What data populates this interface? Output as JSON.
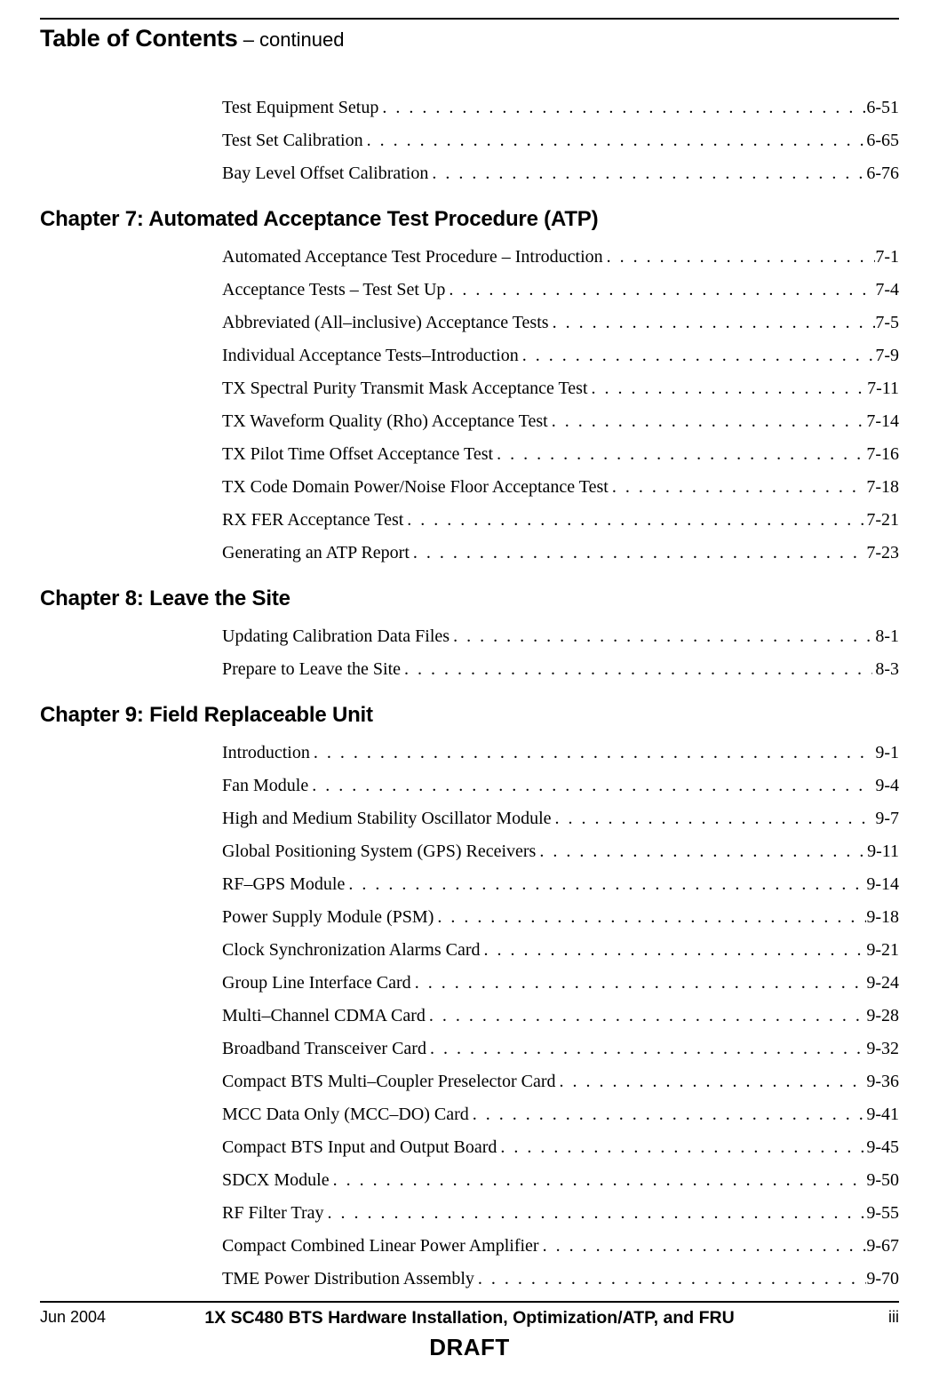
{
  "header": {
    "title": "Table of Contents",
    "suffix": " – continued"
  },
  "pre_entries": [
    {
      "label": "Test Equipment Setup",
      "page": "6-51"
    },
    {
      "label": "Test Set Calibration",
      "page": "6-65"
    },
    {
      "label": "Bay Level Offset Calibration",
      "page": "6-76"
    }
  ],
  "chapters": [
    {
      "title": "Chapter 7: Automated Acceptance Test Procedure (ATP)",
      "entries": [
        {
          "label": "Automated Acceptance Test Procedure – Introduction",
          "page": "7-1"
        },
        {
          "label": "Acceptance Tests – Test Set Up",
          "page": "7-4"
        },
        {
          "label": "Abbreviated (All–inclusive) Acceptance Tests",
          "page": "7-5"
        },
        {
          "label": "Individual Acceptance Tests–Introduction",
          "page": "7-9"
        },
        {
          "label": "TX Spectral Purity Transmit Mask Acceptance Test",
          "page": "7-11"
        },
        {
          "label": "TX Waveform Quality (Rho) Acceptance Test",
          "page": "7-14"
        },
        {
          "label": "TX Pilot Time Offset Acceptance Test",
          "page": "7-16"
        },
        {
          "label": "TX Code Domain Power/Noise Floor Acceptance Test",
          "page": "7-18"
        },
        {
          "label": "RX FER Acceptance Test",
          "page": "7-21"
        },
        {
          "label": "Generating an ATP Report",
          "page": "7-23"
        }
      ]
    },
    {
      "title": "Chapter 8: Leave the Site",
      "entries": [
        {
          "label": "Updating Calibration Data Files",
          "page": "8-1"
        },
        {
          "label": "Prepare to Leave the Site",
          "page": "8-3"
        }
      ]
    },
    {
      "title": "Chapter 9: Field Replaceable Unit",
      "entries": [
        {
          "label": "Introduction",
          "page": "9-1"
        },
        {
          "label": "Fan Module",
          "page": "9-4"
        },
        {
          "label": "High and Medium Stability Oscillator Module",
          "page": "9-7"
        },
        {
          "label": "Global Positioning System (GPS) Receivers",
          "page": "9-11"
        },
        {
          "label": "RF–GPS Module",
          "page": "9-14"
        },
        {
          "label": "Power Supply Module (PSM)",
          "page": "9-18"
        },
        {
          "label": "Clock Synchronization Alarms Card",
          "page": "9-21"
        },
        {
          "label": "Group Line Interface Card",
          "page": "9-24"
        },
        {
          "label": "Multi–Channel CDMA Card",
          "page": "9-28"
        },
        {
          "label": "Broadband Transceiver Card",
          "page": "9-32"
        },
        {
          "label": "Compact BTS Multi–Coupler Preselector Card",
          "page": "9-36"
        },
        {
          "label": "MCC Data Only (MCC–DO) Card",
          "page": "9-41"
        },
        {
          "label": "Compact BTS Input and Output Board",
          "page": "9-45"
        },
        {
          "label": "SDCX  Module",
          "page": "9-50"
        },
        {
          "label": "RF Filter Tray",
          "page": "9-55"
        },
        {
          "label": "Compact Combined Linear Power Amplifier",
          "page": "9-67"
        },
        {
          "label": "TME Power Distribution Assembly",
          "page": "9-70"
        }
      ]
    }
  ],
  "footer": {
    "left": "Jun 2004",
    "center_title": "1X SC480 BTS Hardware Installation, Optimization/ATP, and FRU",
    "center_draft": "DRAFT",
    "right": "iii"
  }
}
